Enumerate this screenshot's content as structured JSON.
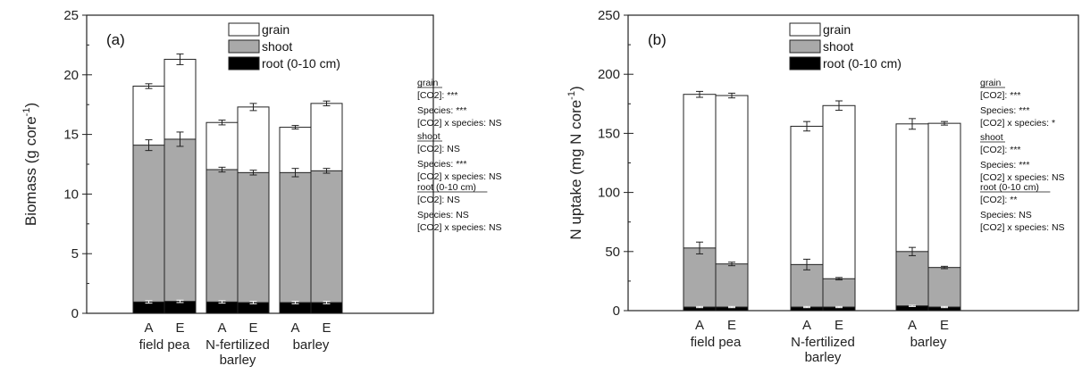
{
  "chart_data": [
    {
      "type": "bar",
      "panel_label": "(a)",
      "ylabel": "Biomass (g core",
      "ylabel_sup": "-1",
      "ylabel_tail": ")",
      "ylim": [
        0,
        25
      ],
      "yticks": [
        0,
        5,
        10,
        15,
        20,
        25
      ],
      "bar_labels": [
        "A",
        "E",
        "A",
        "E",
        "A",
        "E"
      ],
      "group_labels": [
        [
          "field pea"
        ],
        [
          "N-fertilized",
          "barley"
        ],
        [
          "barley"
        ]
      ],
      "legend": [
        {
          "name": "grain",
          "color": "#ffffff"
        },
        {
          "name": "shoot",
          "color": "#a9a9a9"
        },
        {
          "name": "root (0-10 cm)",
          "color": "#000000"
        }
      ],
      "series": [
        {
          "name": "root (0-10 cm)",
          "values": [
            0.95,
            1.0,
            0.95,
            0.9,
            0.9,
            0.9
          ],
          "errors": [
            0.1,
            0.1,
            0.1,
            0.1,
            0.1,
            0.1
          ]
        },
        {
          "name": "shoot",
          "values": [
            14.1,
            14.6,
            12.05,
            11.8,
            11.8,
            11.95
          ],
          "errors": [
            0.45,
            0.6,
            0.2,
            0.2,
            0.35,
            0.2
          ]
        },
        {
          "name": "grain",
          "values": [
            19.05,
            21.3,
            16.0,
            17.3,
            15.6,
            17.6
          ],
          "errors": [
            0.2,
            0.45,
            0.2,
            0.3,
            0.15,
            0.2
          ]
        }
      ],
      "stats": [
        {
          "lines": [
            {
              "t": "grain",
              "head": true
            },
            {
              "t": "[CO2]: ***"
            },
            {
              "t": "Species: ***"
            },
            {
              "t": "[CO2] x species: NS"
            }
          ]
        },
        {
          "lines": [
            {
              "t": "shoot",
              "head": true
            },
            {
              "t": "[CO2]: NS"
            },
            {
              "t": "Species: ***"
            },
            {
              "t": "[CO2] x species: NS"
            }
          ]
        },
        {
          "lines": [
            {
              "t": "root (0-10 cm)",
              "head": true
            },
            {
              "t": "[CO2]: NS"
            },
            {
              "t": "Species: NS"
            },
            {
              "t": "[CO2] x species: NS"
            }
          ]
        }
      ]
    },
    {
      "type": "bar",
      "panel_label": "(b)",
      "ylabel": "N uptake (mg N core",
      "ylabel_sup": "-1",
      "ylabel_tail": ")",
      "ylim": [
        0,
        250
      ],
      "yticks": [
        0,
        50,
        100,
        150,
        200,
        250
      ],
      "bar_labels": [
        "A",
        "E",
        "A",
        "E",
        "A",
        "E"
      ],
      "group_labels": [
        [
          "field pea"
        ],
        [
          "N-fertilized",
          "barley"
        ],
        [
          "barley"
        ]
      ],
      "legend": [
        {
          "name": "grain",
          "color": "#ffffff"
        },
        {
          "name": "shoot",
          "color": "#a9a9a9"
        },
        {
          "name": "root (0-10 cm)",
          "color": "#000000"
        }
      ],
      "series": [
        {
          "name": "root (0-10 cm)",
          "values": [
            3,
            3,
            3,
            3,
            4,
            3
          ],
          "errors": [
            0.5,
            0.5,
            0.5,
            0.5,
            0.5,
            0.5
          ]
        },
        {
          "name": "shoot",
          "values": [
            53,
            39.5,
            39,
            27,
            50,
            36.5
          ],
          "errors": [
            5,
            1.5,
            4.5,
            1,
            3.5,
            1
          ]
        },
        {
          "name": "grain",
          "values": [
            183,
            182,
            156,
            173.5,
            158,
            158.5
          ],
          "errors": [
            2.5,
            2,
            4,
            4,
            4.5,
            1.5
          ]
        }
      ],
      "stats": [
        {
          "lines": [
            {
              "t": "grain",
              "head": true
            },
            {
              "t": "[CO2]: ***"
            },
            {
              "t": "Species: ***"
            },
            {
              "t": "[CO2] x species: *"
            }
          ]
        },
        {
          "lines": [
            {
              "t": "shoot",
              "head": true
            },
            {
              "t": "[CO2]: ***"
            },
            {
              "t": "Species: ***"
            },
            {
              "t": "[CO2] x species: NS"
            }
          ]
        },
        {
          "lines": [
            {
              "t": "root (0-10 cm)",
              "head": true
            },
            {
              "t": "[CO2]: **"
            },
            {
              "t": "Species: NS"
            },
            {
              "t": "[CO2] x species: NS"
            }
          ]
        }
      ]
    }
  ]
}
